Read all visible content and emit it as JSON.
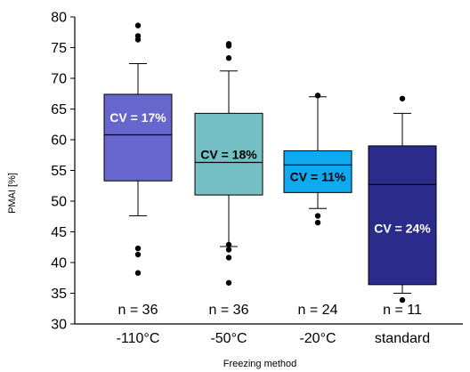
{
  "chart_data": {
    "type": "box",
    "xlabel": "Freezing method",
    "ylabel": "PMAI [%]",
    "ylim": [
      30,
      80
    ],
    "yticks": [
      30,
      35,
      40,
      45,
      50,
      55,
      60,
      65,
      70,
      75,
      80
    ],
    "grid": false,
    "categories": [
      "-110°C",
      "-50°C",
      "-20°C",
      "standard"
    ],
    "boxes": [
      {
        "category": "-110°C",
        "q1": 53.3,
        "median": 60.8,
        "q3": 67.4,
        "whisker_low": 47.6,
        "whisker_high": 72.4,
        "outliers": [
          78.6,
          76.9,
          76.3,
          42.3,
          41.3,
          38.3
        ],
        "color": "#6666cc",
        "cv_label": "CV = 17%",
        "cv_color": "#ffffff",
        "cv_y": 63.6,
        "n_label": "n = 36"
      },
      {
        "category": "-50°C",
        "q1": 51.0,
        "median": 56.3,
        "q3": 64.3,
        "whisker_low": 42.6,
        "whisker_high": 71.2,
        "outliers": [
          75.6,
          75.3,
          73.3,
          42.9,
          42.1,
          40.8,
          36.7
        ],
        "color": "#74c0c4",
        "cv_label": "CV = 18%",
        "cv_color": "#000000",
        "cv_y": 57.6,
        "n_label": "n = 36"
      },
      {
        "category": "-20°C",
        "q1": 51.4,
        "median": 55.9,
        "q3": 58.2,
        "whisker_low": 48.8,
        "whisker_high": 67.0,
        "outliers": [
          67.2,
          47.6,
          46.5
        ],
        "color": "#0eaaf0",
        "cv_label": "CV = 11%",
        "cv_color": "#000000",
        "cv_y": 54.0,
        "n_label": "n = 24"
      },
      {
        "category": "standard",
        "q1": 36.4,
        "median": 52.7,
        "q3": 59.0,
        "whisker_low": 35.0,
        "whisker_high": 64.3,
        "outliers": [
          66.7,
          33.9
        ],
        "color": "#2b2b8c",
        "cv_label": "CV = 24%",
        "cv_color": "#ffffff",
        "cv_y": 45.6,
        "n_label": "n = 11"
      }
    ]
  }
}
